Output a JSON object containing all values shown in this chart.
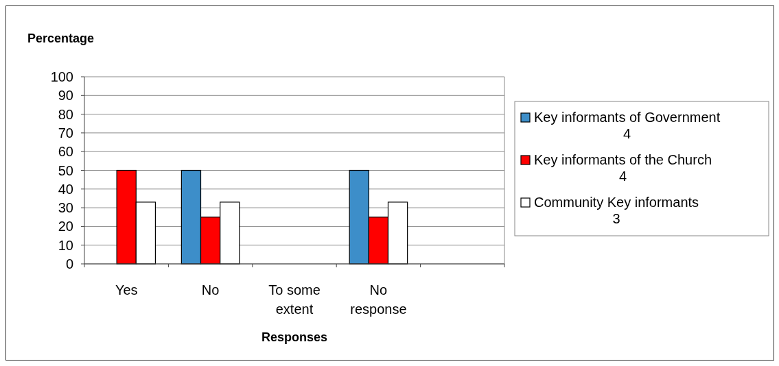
{
  "chart_data": {
    "type": "bar",
    "ylabel": "Percentage",
    "xlabel": "Responses",
    "categories": [
      "Yes",
      "No",
      "To some extent",
      "No response",
      null
    ],
    "series": [
      {
        "name": "Key informants of Government\n4",
        "color": "#3d8ec9",
        "values": [
          0,
          50,
          0,
          50,
          null
        ]
      },
      {
        "name": "Key informants of the Church\n4",
        "color": "#ff0000",
        "values": [
          50,
          25,
          0,
          25,
          null
        ]
      },
      {
        "name": "Community Key informants\n3",
        "color": "#ffffff",
        "values": [
          33,
          33,
          0,
          33,
          null
        ]
      }
    ],
    "ylim": [
      0,
      100
    ],
    "yticks": [
      0,
      10,
      20,
      30,
      40,
      50,
      60,
      70,
      80,
      90,
      100
    ],
    "grid": "y",
    "legend": "right"
  }
}
